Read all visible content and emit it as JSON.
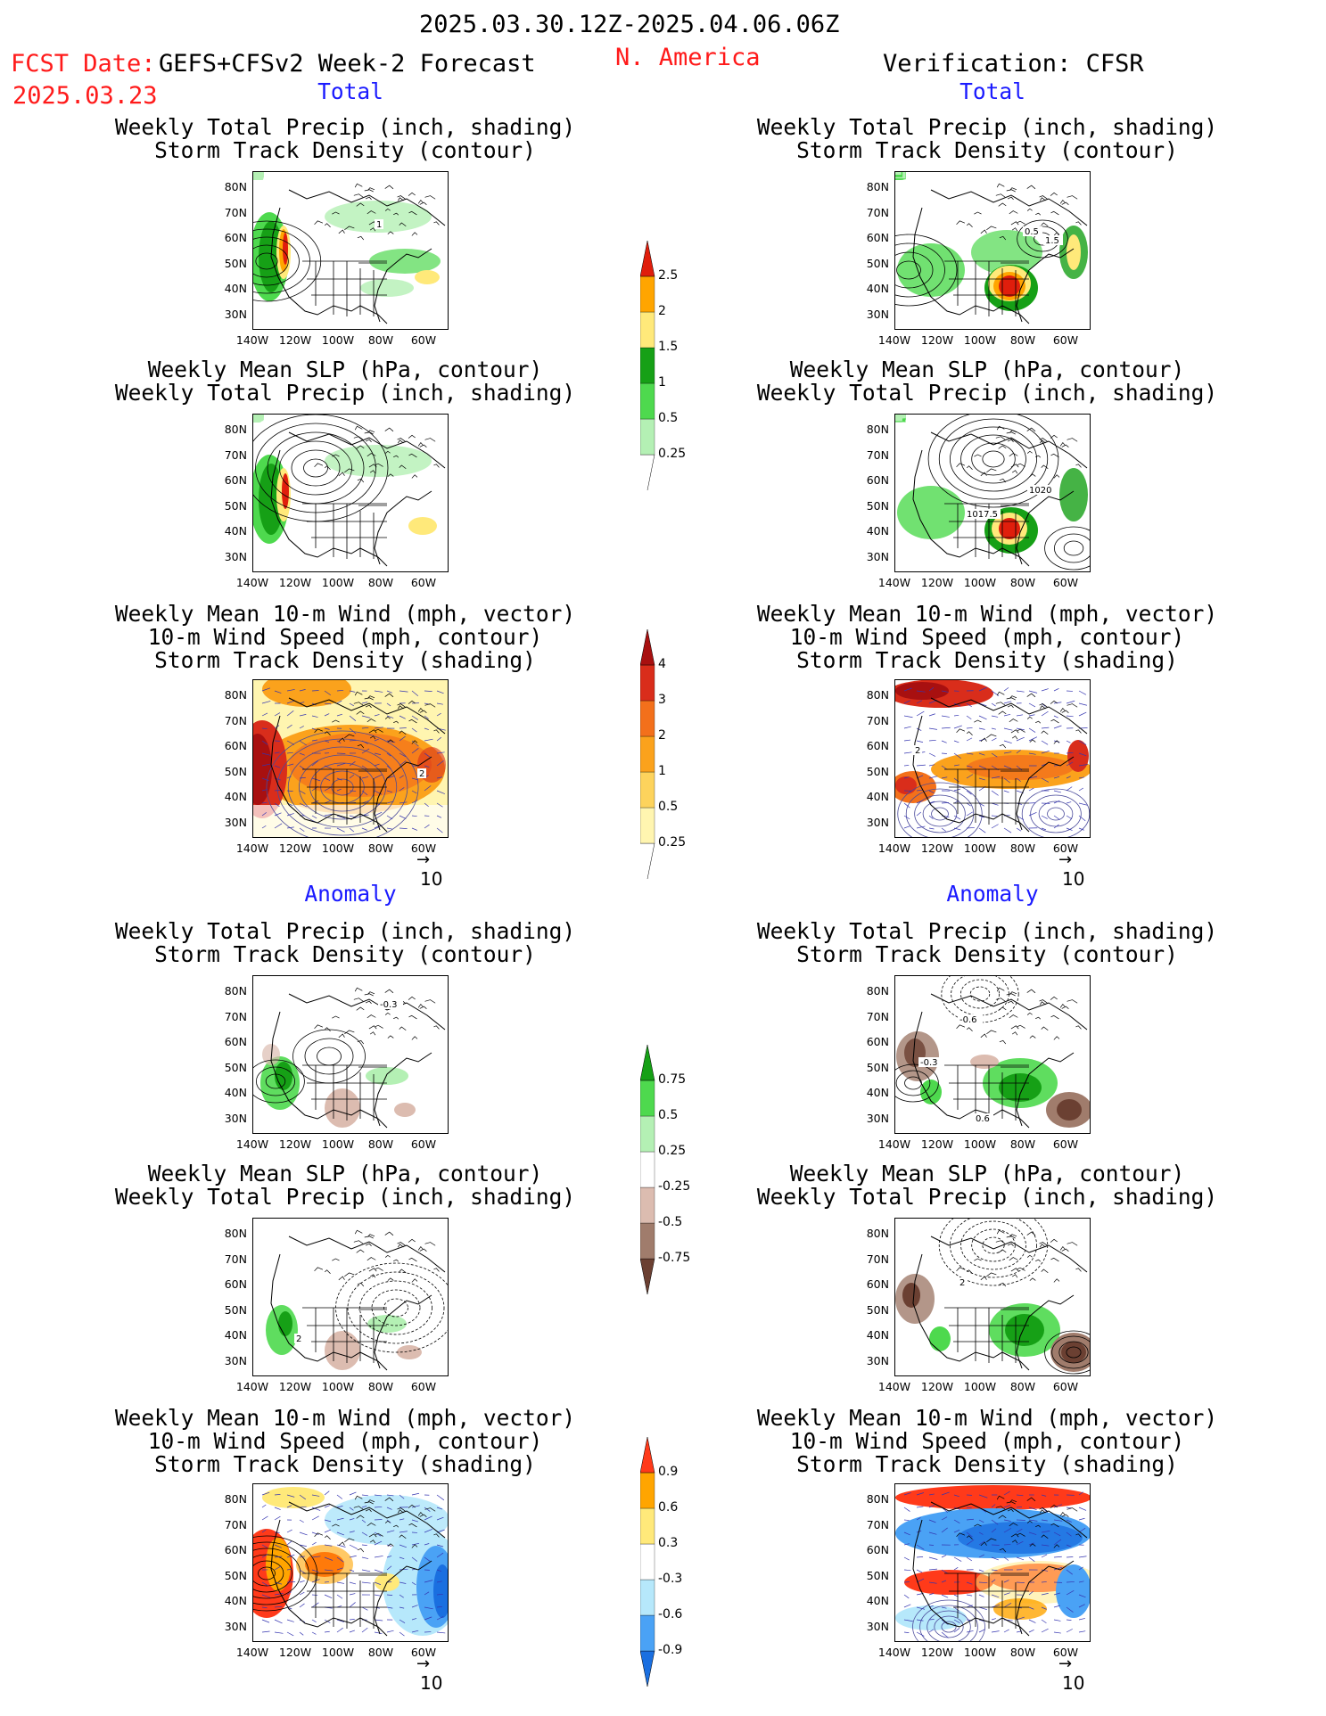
{
  "header": {
    "date_range": "2025.03.30.12Z-2025.04.06.06Z",
    "fcst_label": "FCST Date:",
    "fcst_date": "2025.03.23",
    "forecast_name": "GEFS+CFSv2 Week-2 Forecast",
    "region": "N. America",
    "verification": "Verification: CFSR"
  },
  "sections": {
    "total": "Total",
    "anomaly": "Anomaly"
  },
  "titles": {
    "precip_storm": [
      "Weekly Total Precip (inch, shading)",
      "Storm Track Density (contour)"
    ],
    "slp_precip": [
      "Weekly Mean SLP (hPa, contour)",
      "Weekly Total Precip (inch, shading)"
    ],
    "wind_storm": [
      "Weekly Mean 10-m Wind (mph, vector)",
      "10-m Wind Speed (mph, contour)",
      "Storm Track Density (shading)"
    ]
  },
  "map_axes": {
    "lat_ticks": [
      "80N",
      "70N",
      "60N",
      "50N",
      "40N",
      "30N"
    ],
    "lon_ticks": [
      "140W",
      "120W",
      "100W",
      "80W",
      "60W"
    ],
    "vector_ref": "10"
  },
  "map_annotations": {
    "obs_slp_labels": [
      "1020",
      "1017.5"
    ],
    "fcst_storm_labels": [
      "1",
      "2"
    ],
    "obs_storm_labels": [
      "0.5",
      "1.5",
      "2"
    ],
    "anom_labels": [
      "-0.3",
      "-0.6",
      "0.6",
      "2"
    ]
  },
  "colors": {
    "precip_total": [
      "#b4f0b4",
      "#4ed94e",
      "#16a016",
      "#ffe97a",
      "#ffa500",
      "#e01e0c"
    ],
    "storm_total": [
      "#fff5b0",
      "#fdd35c",
      "#fba21c",
      "#f3701b",
      "#d92d1b",
      "#a81010"
    ],
    "precip_anom": [
      "#6b4032",
      "#a07c6c",
      "#dcbcb0",
      "#ffffff",
      "#b4f0b4",
      "#4ed94e",
      "#16a016"
    ],
    "storm_anom": [
      "#1a6fe0",
      "#4aa2f5",
      "#b6e8fb",
      "#ffffff",
      "#ffe97a",
      "#ffa500",
      "#ff3a1a"
    ]
  },
  "chart_data": [
    {
      "type": "heatmap",
      "title": "Weekly Total Precip (inch, shading) / Storm Track Density (contour)",
      "section": "Total",
      "source": "GEFS+CFSv2 Week-2 Forecast",
      "xlim": [
        -145,
        -50
      ],
      "ylim": [
        25,
        85
      ]
    },
    {
      "type": "heatmap",
      "title": "Weekly Total Precip (inch, shading) / Storm Track Density (contour)",
      "section": "Total",
      "source": "CFSR",
      "xlim": [
        -145,
        -50
      ],
      "ylim": [
        25,
        85
      ]
    },
    {
      "type": "heatmap",
      "title": "Weekly Mean SLP (hPa, contour) / Weekly Total Precip (inch, shading)",
      "section": "Total",
      "source": "GEFS+CFSv2 Week-2 Forecast",
      "xlim": [
        -145,
        -50
      ],
      "ylim": [
        25,
        85
      ]
    },
    {
      "type": "heatmap",
      "title": "Weekly Mean SLP (hPa, contour) / Weekly Total Precip (inch, shading)",
      "section": "Total",
      "source": "CFSR",
      "xlim": [
        -145,
        -50
      ],
      "ylim": [
        25,
        85
      ]
    },
    {
      "type": "heatmap",
      "title": "Weekly Mean 10-m Wind / 10-m Wind Speed / Storm Track Density (shading)",
      "section": "Total",
      "source": "GEFS+CFSv2 Week-2 Forecast",
      "xlim": [
        -145,
        -50
      ],
      "ylim": [
        25,
        85
      ]
    },
    {
      "type": "heatmap",
      "title": "Weekly Mean 10-m Wind / 10-m Wind Speed / Storm Track Density (shading)",
      "section": "Total",
      "source": "CFSR",
      "xlim": [
        -145,
        -50
      ],
      "ylim": [
        25,
        85
      ]
    },
    {
      "type": "heatmap",
      "title": "Weekly Total Precip (inch, shading) / Storm Track Density (contour)",
      "section": "Anomaly",
      "source": "GEFS+CFSv2 Week-2 Forecast",
      "xlim": [
        -145,
        -50
      ],
      "ylim": [
        25,
        85
      ]
    },
    {
      "type": "heatmap",
      "title": "Weekly Total Precip (inch, shading) / Storm Track Density (contour)",
      "section": "Anomaly",
      "source": "CFSR",
      "xlim": [
        -145,
        -50
      ],
      "ylim": [
        25,
        85
      ]
    },
    {
      "type": "heatmap",
      "title": "Weekly Mean SLP (hPa, contour) / Weekly Total Precip (inch, shading)",
      "section": "Anomaly",
      "source": "GEFS+CFSv2 Week-2 Forecast",
      "xlim": [
        -145,
        -50
      ],
      "ylim": [
        25,
        85
      ]
    },
    {
      "type": "heatmap",
      "title": "Weekly Mean SLP (hPa, contour) / Weekly Total Precip (inch, shading)",
      "section": "Anomaly",
      "source": "CFSR",
      "xlim": [
        -145,
        -50
      ],
      "ylim": [
        25,
        85
      ]
    },
    {
      "type": "heatmap",
      "title": "Weekly Mean 10-m Wind / 10-m Wind Speed / Storm Track Density (shading)",
      "section": "Anomaly",
      "source": "GEFS+CFSv2 Week-2 Forecast",
      "xlim": [
        -145,
        -50
      ],
      "ylim": [
        25,
        85
      ]
    },
    {
      "type": "heatmap",
      "title": "Weekly Mean 10-m Wind / 10-m Wind Speed / Storm Track Density (shading)",
      "section": "Anomaly",
      "source": "CFSR",
      "xlim": [
        -145,
        -50
      ],
      "ylim": [
        25,
        85
      ]
    }
  ],
  "colorbars": {
    "precip_total": {
      "levels": [
        "0.25",
        "0.5",
        "1",
        "1.5",
        "2",
        "2.5"
      ]
    },
    "storm_total": {
      "levels": [
        "0.25",
        "0.5",
        "1",
        "2",
        "3",
        "4"
      ]
    },
    "precip_anom": {
      "levels": [
        "-0.75",
        "-0.5",
        "-0.25",
        "0.25",
        "0.5",
        "0.75"
      ]
    },
    "storm_anom": {
      "levels": [
        "-0.9",
        "-0.6",
        "-0.3",
        "0.3",
        "0.6",
        "0.9"
      ]
    }
  }
}
